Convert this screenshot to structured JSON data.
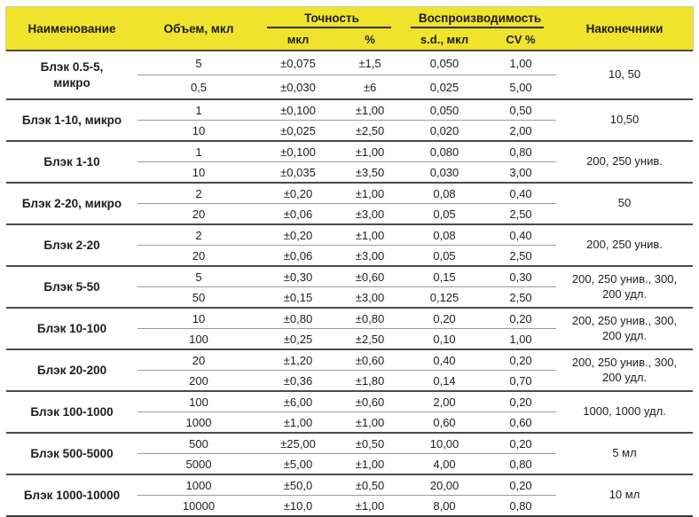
{
  "table": {
    "header": {
      "name": "Наименование",
      "volume": "Объем, мкл",
      "accuracy": "Точность",
      "accuracy_sub_ul": "мкл",
      "accuracy_sub_pct": "%",
      "reproducibility": "Воспроизводимость",
      "reproducibility_sub_sd": "s.d., мкл",
      "reproducibility_sub_cv": "CV %",
      "tips": "Наконечники"
    },
    "colors": {
      "header_bg": "#F0E32B",
      "group_line": "#4A4A4A",
      "inner_line": "#9A9A9A",
      "bottom_line": "#3A3A3A",
      "text": "#1D1D1D"
    },
    "groups": [
      {
        "name": "Блэк 0.5-5, микро",
        "tips": "10, 50",
        "rows": [
          {
            "volume": "5",
            "acc_ul": "±0,075",
            "acc_pct": "±1,5",
            "sd": "0,050",
            "cv": "1,00"
          },
          {
            "volume": "0,5",
            "acc_ul": "±0,030",
            "acc_pct": "±6",
            "sd": "0,025",
            "cv": "5,00"
          }
        ]
      },
      {
        "name": "Блэк 1-10, микро",
        "tips": "10,50",
        "rows": [
          {
            "volume": "1",
            "acc_ul": "±0,100",
            "acc_pct": "±1,00",
            "sd": "0,050",
            "cv": "0,50"
          },
          {
            "volume": "10",
            "acc_ul": "±0,025",
            "acc_pct": "±2,50",
            "sd": "0,020",
            "cv": "2,00"
          }
        ]
      },
      {
        "name": "Блэк 1-10",
        "tips": "200, 250 унив.",
        "rows": [
          {
            "volume": "1",
            "acc_ul": "±0,100",
            "acc_pct": "±1,00",
            "sd": "0,080",
            "cv": "0,80"
          },
          {
            "volume": "10",
            "acc_ul": "±0,035",
            "acc_pct": "±3,50",
            "sd": "0,030",
            "cv": "3,00"
          }
        ]
      },
      {
        "name": "Блэк 2-20, микро",
        "tips": "50",
        "rows": [
          {
            "volume": "2",
            "acc_ul": "±0,20",
            "acc_pct": "±1,00",
            "sd": "0,08",
            "cv": "0,40"
          },
          {
            "volume": "20",
            "acc_ul": "±0,06",
            "acc_pct": "±3,00",
            "sd": "0,05",
            "cv": "2,50"
          }
        ]
      },
      {
        "name": "Блэк 2-20",
        "tips": "200, 250 унив.",
        "rows": [
          {
            "volume": "2",
            "acc_ul": "±0,20",
            "acc_pct": "±1,00",
            "sd": "0,08",
            "cv": "0,40"
          },
          {
            "volume": "20",
            "acc_ul": "±0,06",
            "acc_pct": "±3,00",
            "sd": "0,05",
            "cv": "2,50"
          }
        ]
      },
      {
        "name": "Блэк 5-50",
        "tips": "200, 250 унив., 300, 200 удл.",
        "rows": [
          {
            "volume": "5",
            "acc_ul": "±0,30",
            "acc_pct": "±0,60",
            "sd": "0,15",
            "cv": "0,30"
          },
          {
            "volume": "50",
            "acc_ul": "±0,15",
            "acc_pct": "±3,00",
            "sd": "0,125",
            "cv": "2,50"
          }
        ]
      },
      {
        "name": "Блэк 10-100",
        "tips": "200, 250 унив., 300, 200 удл.",
        "rows": [
          {
            "volume": "10",
            "acc_ul": "±0,80",
            "acc_pct": "±0,80",
            "sd": "0,20",
            "cv": "0,20"
          },
          {
            "volume": "100",
            "acc_ul": "±0,25",
            "acc_pct": "±2,50",
            "sd": "0,10",
            "cv": "1,00"
          }
        ]
      },
      {
        "name": "Блэк 20-200",
        "tips": "200, 250 унив., 300, 200 удл.",
        "rows": [
          {
            "volume": "20",
            "acc_ul": "±1,20",
            "acc_pct": "±0,60",
            "sd": "0,40",
            "cv": "0,20"
          },
          {
            "volume": "200",
            "acc_ul": "±0,36",
            "acc_pct": "±1,80",
            "sd": "0,14",
            "cv": "0,70"
          }
        ]
      },
      {
        "name": "Блэк 100-1000",
        "tips": "1000, 1000 удл.",
        "rows": [
          {
            "volume": "100",
            "acc_ul": "±6,00",
            "acc_pct": "±0,60",
            "sd": "2,00",
            "cv": "0,20"
          },
          {
            "volume": "1000",
            "acc_ul": "±1,00",
            "acc_pct": "±1,00",
            "sd": "0,60",
            "cv": "0,60"
          }
        ]
      },
      {
        "name": "Блэк 500-5000",
        "tips": "5 мл",
        "rows": [
          {
            "volume": "500",
            "acc_ul": "±25,00",
            "acc_pct": "±0,50",
            "sd": "10,00",
            "cv": "0,20"
          },
          {
            "volume": "5000",
            "acc_ul": "±5,00",
            "acc_pct": "±1,00",
            "sd": "4,00",
            "cv": "0,80"
          }
        ]
      },
      {
        "name": "Блэк 1000-10000",
        "tips": "10 мл",
        "rows": [
          {
            "volume": "1000",
            "acc_ul": "±50,0",
            "acc_pct": "±0,50",
            "sd": "20,00",
            "cv": "0,20"
          },
          {
            "volume": "10000",
            "acc_ul": "±10,0",
            "acc_pct": "±1,00",
            "sd": "8,00",
            "cv": "0,80"
          }
        ]
      }
    ]
  }
}
